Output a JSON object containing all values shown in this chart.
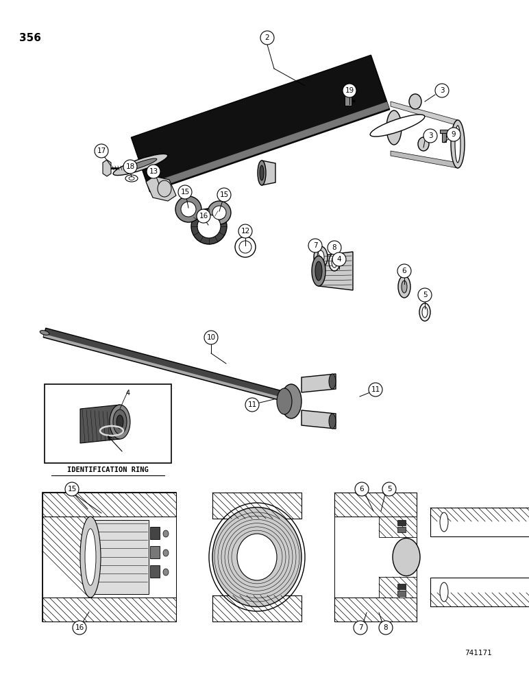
{
  "page_number": "356",
  "figure_number": "741171",
  "bg": "#ffffff",
  "lc": "#000000",
  "id_ring_label": "IDENTIFICATION RING",
  "figsize": [
    7.72,
    10.0
  ],
  "dpi": 100
}
